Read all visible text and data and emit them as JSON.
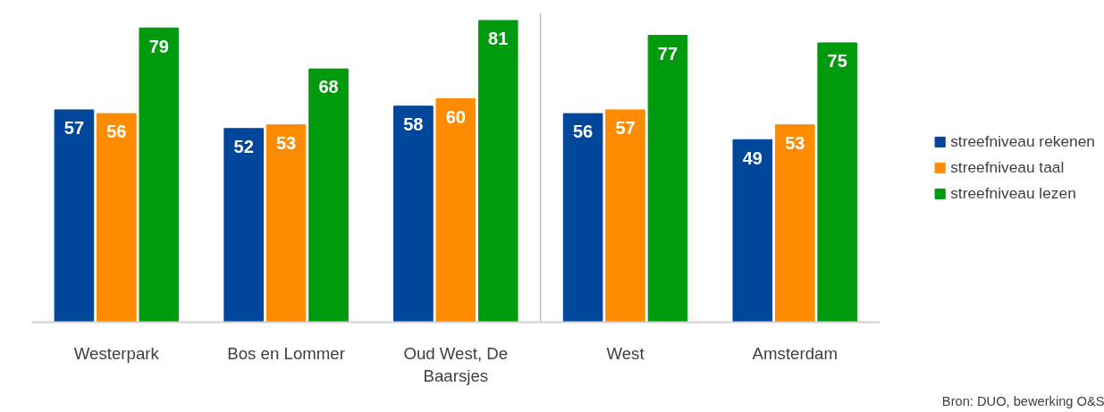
{
  "chart_data": {
    "type": "bar",
    "categories": [
      "Westerpark",
      "Bos en Lommer",
      "Oud West, De Baarsjes",
      "West",
      "Amsterdam"
    ],
    "series": [
      {
        "name": "streefniveau rekenen",
        "color": "#00479b",
        "values": [
          57,
          52,
          58,
          56,
          49
        ]
      },
      {
        "name": "streefniveau taal",
        "color": "#ff8c00",
        "values": [
          56,
          53,
          60,
          57,
          53
        ]
      },
      {
        "name": "streefniveau lezen",
        "color": "#009a0e",
        "values": [
          79,
          68,
          81,
          77,
          75
        ]
      }
    ],
    "data_labels": true,
    "legend": "right",
    "grid": false,
    "annotations": [
      "Bron: DUO, bewerking O&S"
    ]
  }
}
